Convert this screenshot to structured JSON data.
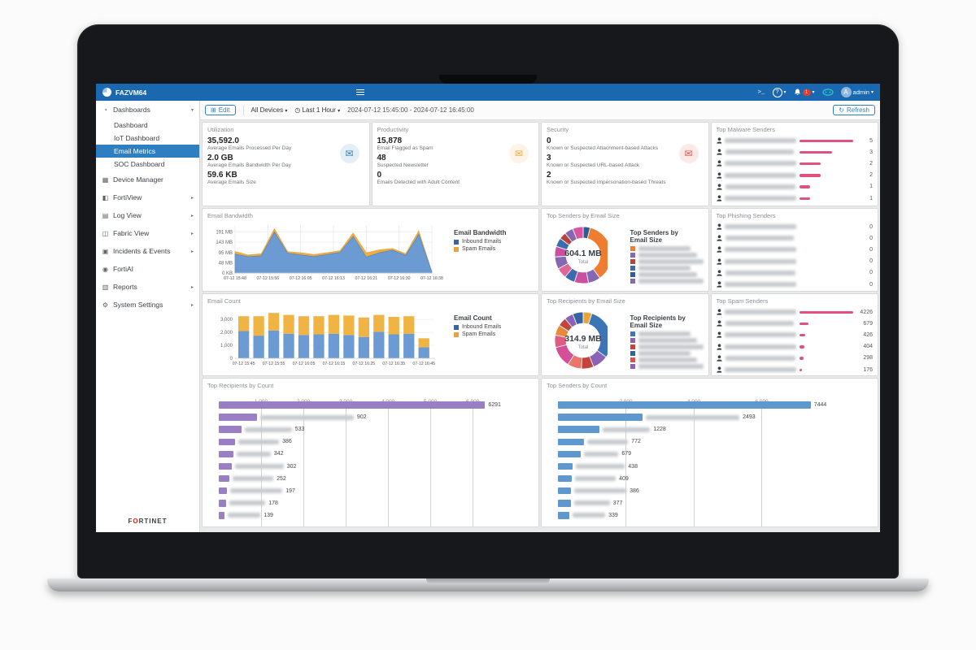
{
  "topbar": {
    "brand": "FAZVM64",
    "console_icon": ">_",
    "admin": "admin",
    "notification_count": "1"
  },
  "toolbar": {
    "edit": "Edit",
    "devices": "All Devices",
    "timespan": "Last 1 Hour",
    "daterange": "2024-07-12 15:45:00 - 2024-07-12 16:45:00",
    "refresh": "Refresh"
  },
  "sidebar": {
    "logo": "FORTINET",
    "items": [
      {
        "label": "Dashboards",
        "icon": "◔",
        "arrow": "▾",
        "children": [
          {
            "label": "Dashboard"
          },
          {
            "label": "IoT Dashboard"
          },
          {
            "label": "Email Metrics",
            "selected": true
          },
          {
            "label": "SOC Dashboard"
          }
        ]
      },
      {
        "label": "Device Manager",
        "icon": "▦"
      },
      {
        "label": "FortiView",
        "icon": "◧",
        "arrow": "▸"
      },
      {
        "label": "Log View",
        "icon": "▤",
        "arrow": "▸"
      },
      {
        "label": "Fabric View",
        "icon": "◫",
        "arrow": "▸"
      },
      {
        "label": "Incidents & Events",
        "icon": "▣",
        "arrow": "▸"
      },
      {
        "label": "FortiAI",
        "icon": "◉"
      },
      {
        "label": "Reports",
        "icon": "▥",
        "arrow": "▸"
      },
      {
        "label": "System Settings",
        "icon": "⚙",
        "arrow": "▸"
      }
    ]
  },
  "widgets": {
    "utilization": {
      "title": "Utilization",
      "icon": "envelope",
      "accent": "#2e7fc2",
      "stats": [
        {
          "value": "35,592.0",
          "label": "Average Emails Processed Per Day"
        },
        {
          "value": "2.0 GB",
          "label": "Average Emails Bandwidth Per Day"
        },
        {
          "value": "59.6 KB",
          "label": "Average Emails Size"
        }
      ]
    },
    "productivity": {
      "title": "Productivity",
      "icon": "envelope",
      "accent": "#f0a53a",
      "stats": [
        {
          "value": "15,878",
          "label": "Email Flagged as Spam"
        },
        {
          "value": "48",
          "label": "Suspected Newsletter"
        },
        {
          "value": "0",
          "label": "Emails Detected with Adult Content"
        }
      ]
    },
    "security": {
      "title": "Security",
      "icon": "envelope",
      "accent": "#e2574f",
      "stats": [
        {
          "value": "0",
          "label": "Known or Suspected Attachment-based Attacks"
        },
        {
          "value": "3",
          "label": "Known or Suspected URL-based Attack"
        },
        {
          "value": "2",
          "label": "Known or Suspected Impersonation-based Threats"
        }
      ]
    },
    "top_malware_senders": {
      "title": "Top Malware Senders",
      "bar_color": "#e0517e",
      "redacted_names": true,
      "values": [
        5,
        3,
        2,
        2,
        1,
        1
      ]
    },
    "top_phishing_senders": {
      "title": "Top Phishing Senders",
      "redacted_names": true,
      "values": [
        0,
        0,
        0,
        0,
        0,
        0
      ]
    },
    "top_spam_senders": {
      "title": "Top Spam Senders",
      "bar_color": "#e0517e",
      "redacted_names": true,
      "values": [
        4226,
        679,
        426,
        404,
        298,
        176
      ]
    },
    "email_bandwidth": {
      "title": "Email Bandwidth",
      "chart": {
        "type": "area",
        "y_ticks": [
          {
            "label": "191 MB",
            "v": 191
          },
          {
            "label": "143 MB",
            "v": 143
          },
          {
            "label": "95 MB",
            "v": 95
          },
          {
            "label": "48 MB",
            "v": 48
          },
          {
            "label": "0 KB",
            "v": 0
          }
        ],
        "y_max": 215,
        "x_labels": [
          "07-12 15:48",
          "07-12 15:56",
          "07-12 16:05",
          "07-12 16:13",
          "07-12 16:21",
          "07-12 16:30",
          "07-12 16:38"
        ],
        "series": [
          {
            "name": "Inbound Emails",
            "color": "#6b9bd2",
            "stroke": "#4d86c4",
            "values": [
              88,
              76,
              80,
              190,
              92,
              84,
              76,
              86,
              96,
              170,
              74,
              94,
              106,
              82,
              180,
              4
            ]
          },
          {
            "name": "Spam Emails",
            "color": "#f0ad3f",
            "stroke": "#e8a33d",
            "values": [
              12,
              8,
              10,
              16,
              8,
              10,
              10,
              8,
              8,
              16,
              20,
              14,
              8,
              8,
              16,
              2
            ]
          }
        ]
      },
      "legend_title": "Email Bandwidth",
      "legend": [
        {
          "label": "Inbound Emails",
          "color": "#3a66a0"
        },
        {
          "label": "Spam Emails",
          "color": "#e8a33d"
        }
      ]
    },
    "email_count": {
      "title": "Email Count",
      "chart": {
        "type": "stacked-bar",
        "y_ticks": [
          {
            "label": "3,000",
            "v": 3000
          },
          {
            "label": "2,000",
            "v": 2000
          },
          {
            "label": "1,000",
            "v": 1000
          },
          {
            "label": "0",
            "v": 0
          }
        ],
        "y_max": 3700,
        "x_labels": [
          "07-12 15:45",
          "07-12 15:55",
          "07-12 16:05",
          "07-12 16:15",
          "07-12 16:25",
          "07-12 16:35",
          "07-12 16:45"
        ],
        "series": [
          {
            "name": "Inbound Emails",
            "color": "#6b9bd2",
            "values": [
              2100,
              1750,
              2150,
              1900,
              1800,
              1850,
              1900,
              1800,
              1650,
              2050,
              1850,
              1900,
              850
            ]
          },
          {
            "name": "Spam Emails",
            "color": "#f0b445",
            "values": [
              1150,
              1500,
              1350,
              1450,
              1450,
              1400,
              1450,
              1500,
              1500,
              1300,
              1350,
              1350,
              700
            ]
          }
        ]
      },
      "legend_title": "Email Count",
      "legend": [
        {
          "label": "Inbound Emails",
          "color": "#3a66a0"
        },
        {
          "label": "Spam Emails",
          "color": "#e8a33d"
        }
      ]
    },
    "top_senders_by_size": {
      "title": "Top Senders by Email Size",
      "center_value": "604.1 MB",
      "center_label": "Total",
      "legend_title_line1": "Top Senders by",
      "legend_title_line2": "Email Size",
      "redacted_names": true,
      "segments": [
        {
          "pct": 4,
          "color": "#2d5c97"
        },
        {
          "pct": 36,
          "color": "#ee7d31"
        },
        {
          "pct": 7,
          "color": "#8667b3"
        },
        {
          "pct": 8,
          "color": "#cb4fa0"
        },
        {
          "pct": 6,
          "color": "#3c6cae"
        },
        {
          "pct": 6,
          "color": "#e06698"
        },
        {
          "pct": 7,
          "color": "#8667b3"
        },
        {
          "pct": 6,
          "color": "#cb4fa0"
        },
        {
          "pct": 5,
          "color": "#3c6cae"
        },
        {
          "pct": 4,
          "color": "#b5443c"
        },
        {
          "pct": 5,
          "color": "#8667b3"
        },
        {
          "pct": 6,
          "color": "#d9539e"
        }
      ],
      "legend_colors": [
        "#ee7d31",
        "#8667b3",
        "#b5443c",
        "#3c6cae",
        "#2d5c97",
        "#8667b3"
      ]
    },
    "top_recipients_by_size": {
      "title": "Top Recipients by Email Size",
      "center_value": "314.9 MB",
      "center_label": "Total",
      "legend_title_line1": "Top Recipients by",
      "legend_title_line2": "Email Size",
      "redacted_names": true,
      "segments": [
        {
          "pct": 5,
          "color": "#e8a43a"
        },
        {
          "pct": 30,
          "color": "#3c74b5"
        },
        {
          "pct": 9,
          "color": "#8a62b8"
        },
        {
          "pct": 7,
          "color": "#c2443c"
        },
        {
          "pct": 8,
          "color": "#e8776b"
        },
        {
          "pct": 12,
          "color": "#d44f96"
        },
        {
          "pct": 7,
          "color": "#e05a84"
        },
        {
          "pct": 6,
          "color": "#e88a3a"
        },
        {
          "pct": 5,
          "color": "#c2443c"
        },
        {
          "pct": 5,
          "color": "#8a62b8"
        },
        {
          "pct": 6,
          "color": "#35639f"
        }
      ],
      "legend_colors": [
        "#3c74b5",
        "#8a62b8",
        "#c2443c",
        "#35639f",
        "#d9534f",
        "#8a62b8"
      ]
    },
    "top_recipients_by_count": {
      "title": "Top Recipients by Count",
      "bar_color": "#9b7fc4",
      "redacted_names": true,
      "axis_ticks": [
        {
          "label": "1,000",
          "v": 1000
        },
        {
          "label": "2,000",
          "v": 2000
        },
        {
          "label": "3,000",
          "v": 3000
        },
        {
          "label": "4,000",
          "v": 4000
        },
        {
          "label": "5,000",
          "v": 5000
        },
        {
          "label": "6,000",
          "v": 6000
        }
      ],
      "axis_max": 6900,
      "values": [
        6291,
        902,
        533,
        386,
        342,
        302,
        252,
        197,
        178,
        139
      ]
    },
    "top_senders_by_count": {
      "title": "Top Senders by Count",
      "bar_color": "#5f97cf",
      "redacted_names": true,
      "axis_ticks": [
        {
          "label": "2,000",
          "v": 2000
        },
        {
          "label": "4,000",
          "v": 4000
        },
        {
          "label": "6,000",
          "v": 6000
        }
      ],
      "axis_max": 8600,
      "values": [
        7444,
        2493,
        1228,
        772,
        679,
        438,
        409,
        386,
        377,
        339
      ]
    }
  }
}
